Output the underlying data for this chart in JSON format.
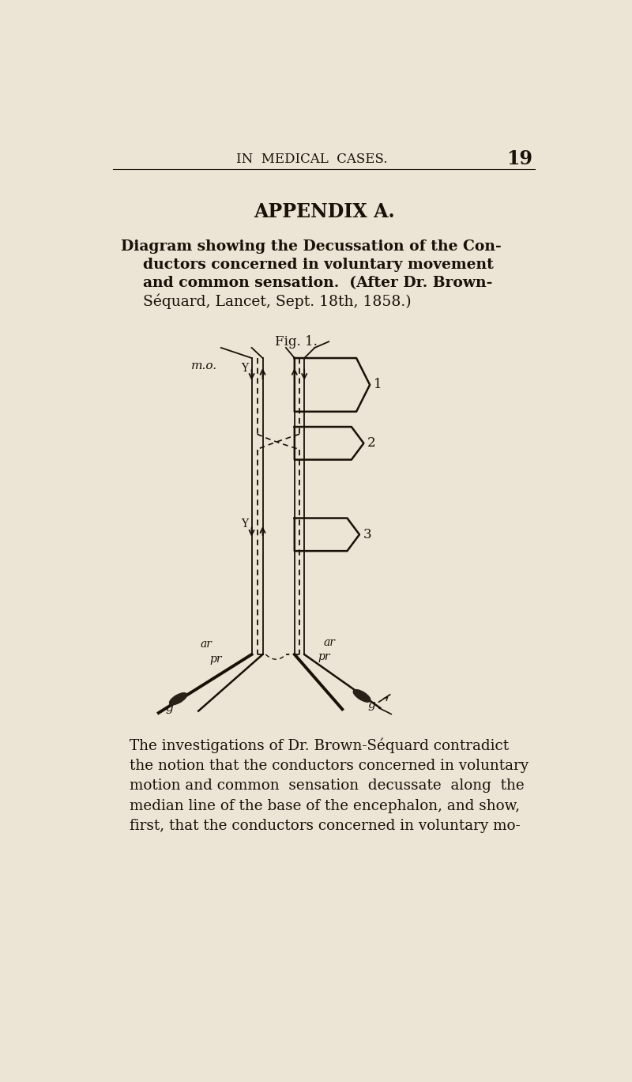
{
  "bg_color": "#ece4d4",
  "text_color": "#1a1008",
  "header_text": "IN  MEDICAL  CASES.",
  "page_number": "19",
  "appendix_title": "APPENDIX A.",
  "diagram_title_lines": [
    "Diagram showing the Decussation of the Con-",
    "ductors concerned in voluntary movement",
    "and common sensation.  (After Dr. Brown-",
    "Séquard, Lancet, Sept. 18th, 1858.)"
  ],
  "fig_label": "Fig. 1.",
  "body_text_lines": [
    "The investigations of Dr. Brown-Séquard contradict",
    "the notion that the conductors concerned in voluntary",
    "motion and common  sensation  decussate  along  the",
    "median line of the base of the encephalon, and show,",
    "first, that the conductors concerned in voluntary mo-"
  ],
  "line_color": "#1a1008",
  "dashed_color": "#1a1008"
}
